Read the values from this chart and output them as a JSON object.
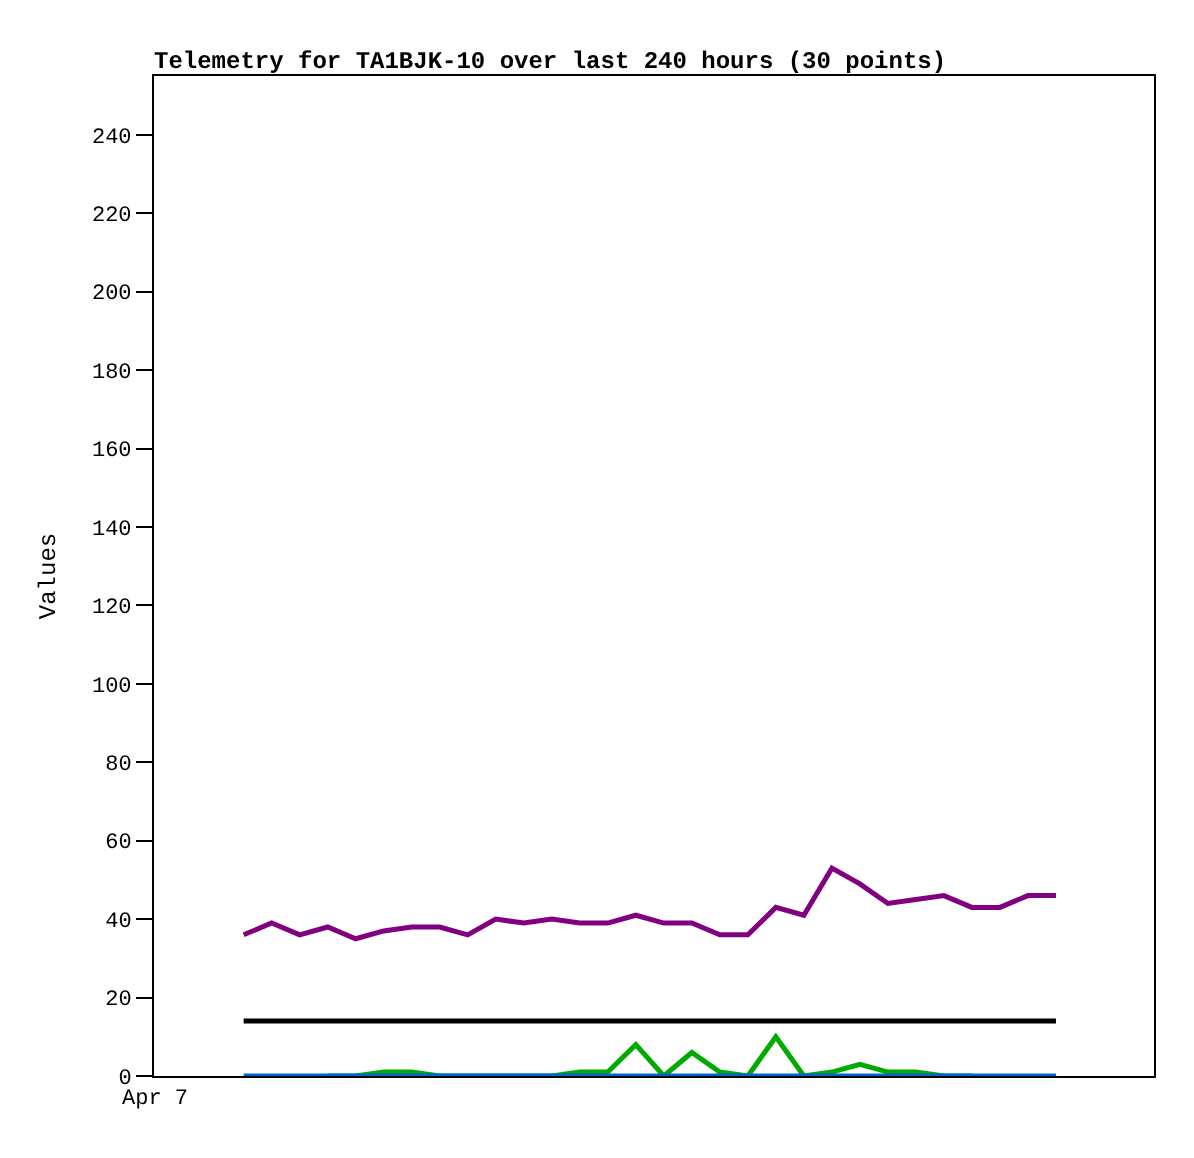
{
  "chart_data": {
    "type": "line",
    "title": "Telemetry for TA1BJK-10 over last 240 hours (30 points)",
    "ylabel": "Values",
    "categories": [
      null,
      null,
      null,
      null,
      null,
      null,
      null,
      null,
      null,
      null,
      null,
      null,
      null,
      null,
      null,
      null,
      null,
      null,
      null,
      null,
      null,
      null,
      null,
      null,
      null,
      null,
      null,
      null,
      null,
      null
    ],
    "annotations": [
      "Apr 7"
    ],
    "series": [
      {
        "color": "#800080",
        "values": [
          36,
          39,
          36,
          38,
          35,
          37,
          38,
          38,
          36,
          40,
          39,
          40,
          39,
          39,
          41,
          39,
          39,
          36,
          36,
          43,
          41,
          53,
          49,
          44,
          45,
          46,
          43,
          43,
          46,
          46
        ]
      },
      {
        "color": "#000000",
        "values": [
          14,
          14,
          14,
          14,
          14,
          14,
          14,
          14,
          14,
          14,
          14,
          14,
          14,
          14,
          14,
          14,
          14,
          14,
          14,
          14,
          14,
          14,
          14,
          14,
          14,
          14,
          14,
          14,
          14,
          14
        ]
      },
      {
        "color": "#00aa00",
        "values": [
          null,
          null,
          null,
          0,
          0,
          1,
          1,
          0,
          0,
          0,
          0,
          0,
          1,
          1,
          8,
          0,
          6,
          1,
          0,
          10,
          0,
          1,
          3,
          1,
          1,
          0,
          0,
          null,
          null,
          null
        ]
      },
      {
        "color": "#0066cc",
        "values": [
          0,
          0,
          0,
          0,
          0,
          0,
          0,
          0,
          0,
          0,
          0,
          0,
          0,
          0,
          0,
          0,
          0,
          0,
          0,
          0,
          0,
          0,
          0,
          0,
          0,
          0,
          0,
          0,
          0,
          0
        ]
      }
    ],
    "ylim": [
      0,
      255
    ],
    "yticks": [
      0,
      20,
      40,
      60,
      80,
      100,
      120,
      140,
      160,
      180,
      200,
      220,
      240
    ],
    "marker": "none",
    "line_style": "solid"
  }
}
